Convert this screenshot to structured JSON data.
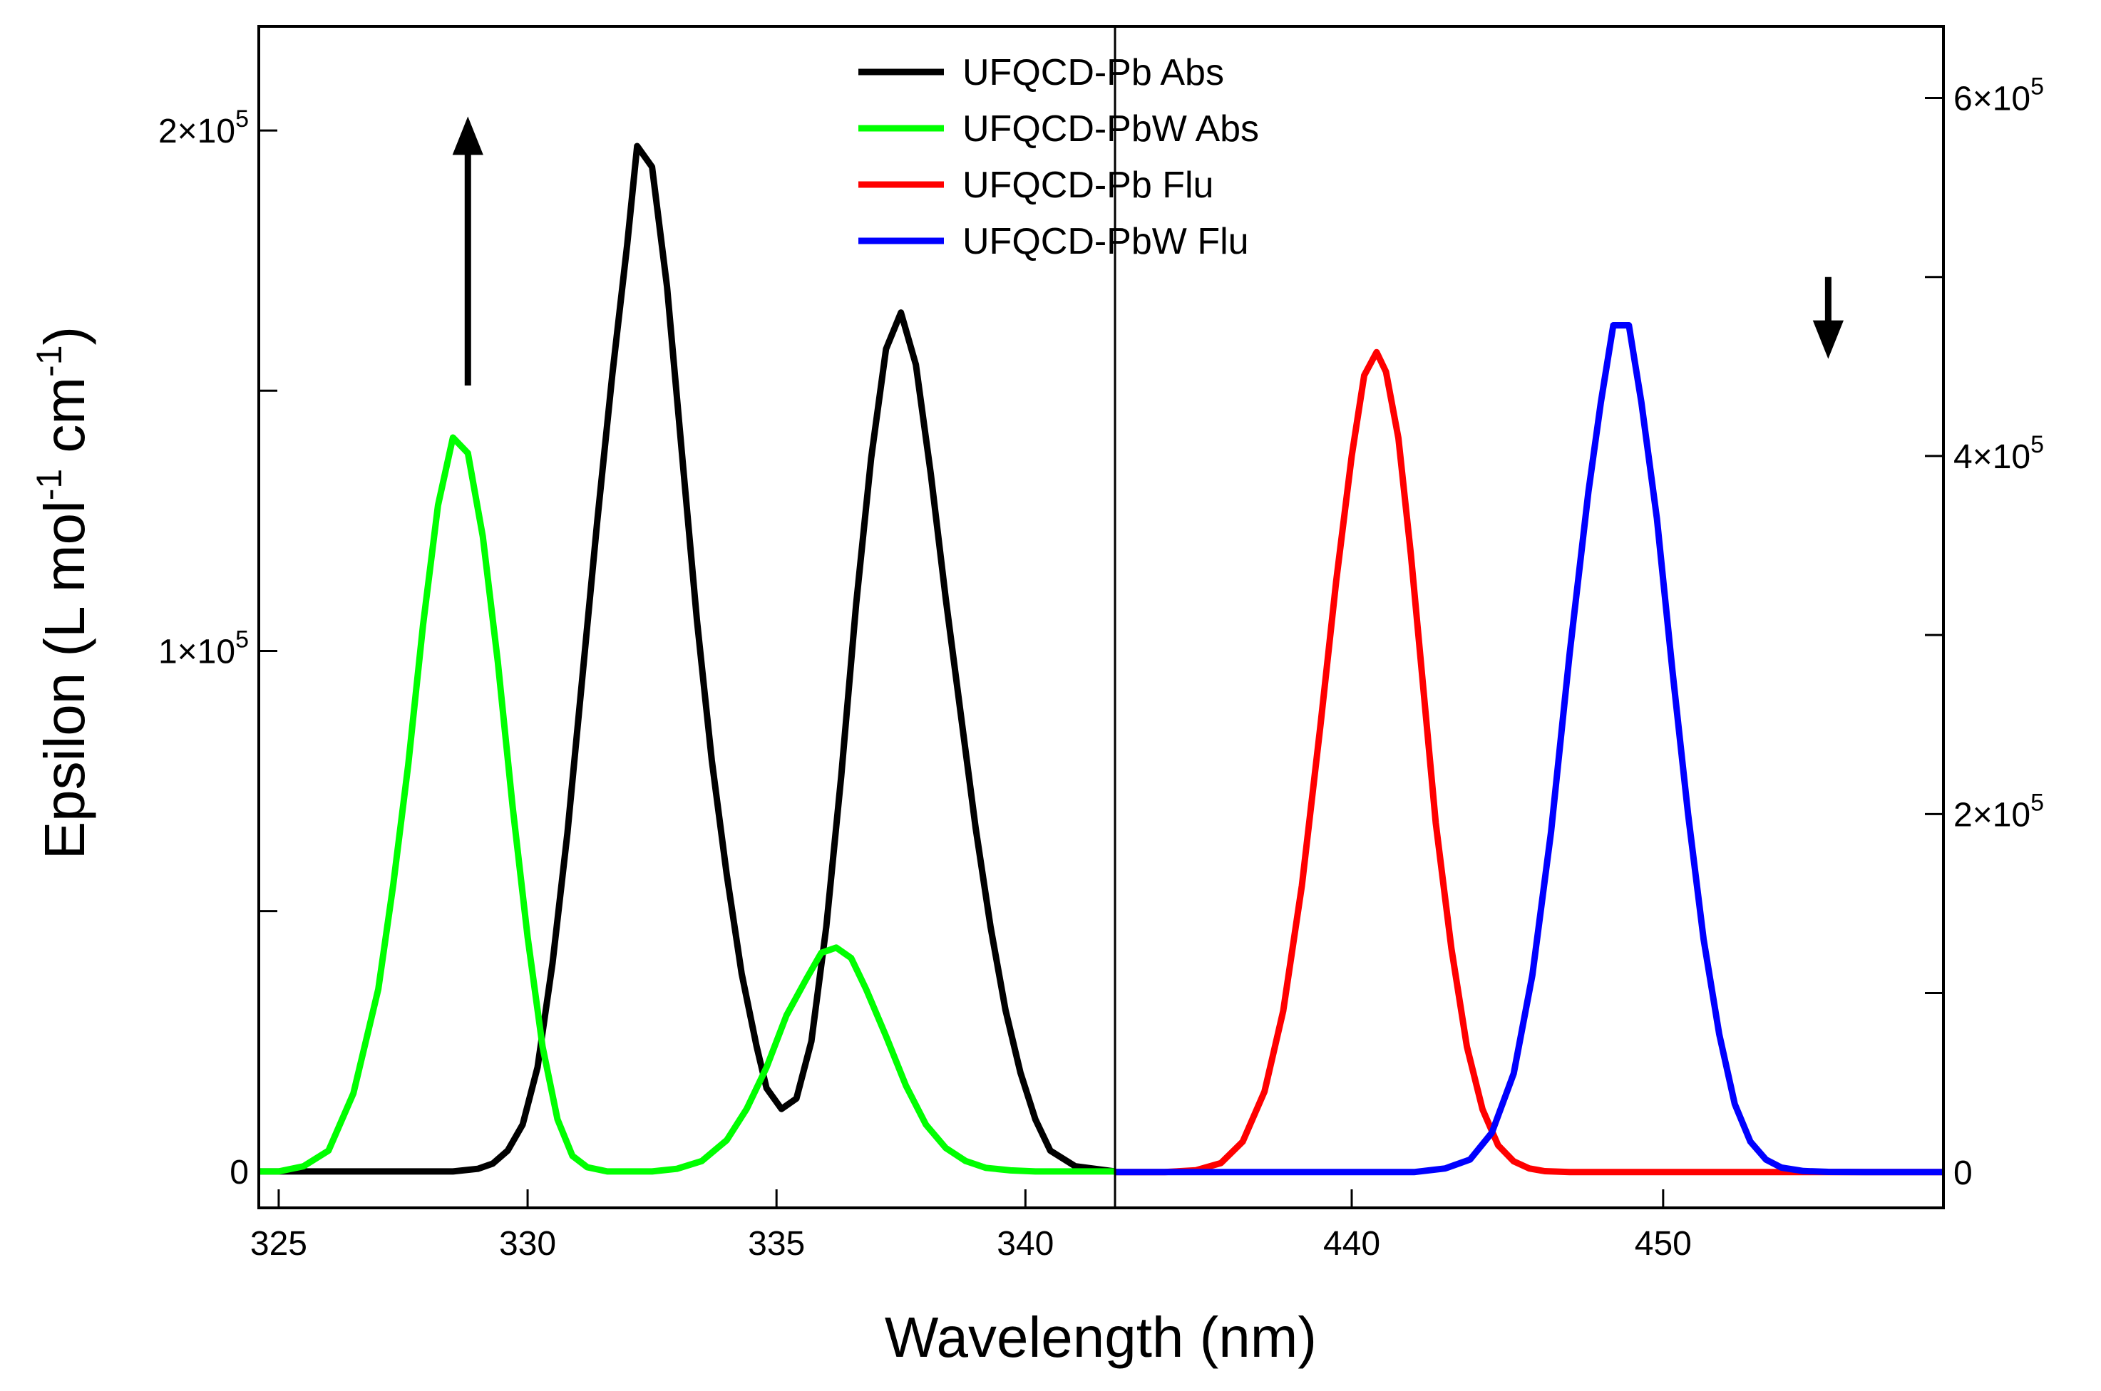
{
  "chart_data": {
    "type": "line",
    "xlabel": "Wavelength (nm)",
    "ylabel_parts": [
      "Epsilon (L mol",
      "-1",
      " cm",
      "-1",
      ")"
    ],
    "left_panel": {
      "xlim": [
        324.6,
        341.8
      ],
      "ylim": [
        -7000,
        220000
      ],
      "xticks": [
        325,
        330,
        335,
        340
      ],
      "xtick_labels": [
        "325",
        "330",
        "335",
        "340"
      ],
      "yticks": [
        0,
        50000,
        100000,
        150000,
        200000
      ],
      "ytick_labels": [
        {
          "value": 0,
          "mantissa": "0",
          "exponent": ""
        },
        {
          "value": 100000,
          "mantissa": "1×10",
          "exponent": "5"
        },
        {
          "value": 200000,
          "mantissa": "2×10",
          "exponent": "5"
        }
      ],
      "series": [
        {
          "name": "UFQCD-Pb Abs",
          "color": "#000000",
          "x": [
            324.6,
            325,
            326,
            327,
            328,
            328.5,
            329,
            329.3,
            329.6,
            329.9,
            330.2,
            330.5,
            330.8,
            331.1,
            331.4,
            331.7,
            332.0,
            332.2,
            332.5,
            332.8,
            333.1,
            333.4,
            333.7,
            334.0,
            334.3,
            334.6,
            334.8,
            335.1,
            335.4,
            335.7,
            336.0,
            336.3,
            336.6,
            336.9,
            337.2,
            337.5,
            337.8,
            338.1,
            338.4,
            338.7,
            339.0,
            339.3,
            339.6,
            339.9,
            340.2,
            340.5,
            341.0,
            341.8
          ],
          "y": [
            0,
            0,
            0,
            0,
            0,
            0,
            500,
            1500,
            4000,
            9000,
            20000,
            40000,
            65000,
            95000,
            125000,
            153000,
            178000,
            197000,
            193000,
            170000,
            138000,
            106000,
            79000,
            57000,
            38000,
            24000,
            16000,
            12000,
            14000,
            25000,
            47000,
            76000,
            109000,
            137000,
            158000,
            165000,
            155000,
            134000,
            110000,
            88000,
            66000,
            47000,
            31000,
            19000,
            10000,
            4000,
            1000,
            0
          ]
        },
        {
          "name": "UFQCD-PbW Abs",
          "color": "#00ff00",
          "x": [
            324.6,
            325,
            325.5,
            326,
            326.5,
            327,
            327.3,
            327.6,
            327.9,
            328.2,
            328.5,
            328.8,
            329.1,
            329.4,
            329.7,
            330.0,
            330.3,
            330.6,
            330.9,
            331.2,
            331.6,
            332.0,
            332.5,
            333.0,
            333.5,
            334.0,
            334.4,
            334.8,
            335.2,
            335.6,
            335.9,
            336.2,
            336.5,
            336.8,
            337.2,
            337.6,
            338.0,
            338.4,
            338.8,
            339.2,
            339.7,
            340.2,
            341.0,
            341.8
          ],
          "y": [
            0,
            0,
            1000,
            4000,
            15000,
            35000,
            55000,
            78000,
            105000,
            128000,
            141000,
            138000,
            122000,
            98000,
            70000,
            45000,
            24000,
            10000,
            3000,
            800,
            0,
            0,
            0,
            500,
            2000,
            6000,
            12000,
            20000,
            30000,
            37000,
            42000,
            43000,
            41000,
            35000,
            26000,
            16500,
            9000,
            4500,
            2000,
            700,
            200,
            0,
            0,
            0
          ]
        }
      ]
    },
    "right_panel": {
      "xlim": [
        432.4,
        459.0
      ],
      "ylim": [
        -20000,
        640000
      ],
      "xticks": [
        440,
        450
      ],
      "xtick_labels": [
        "440",
        "450"
      ],
      "yticks": [
        0,
        100000,
        200000,
        300000,
        400000,
        500000,
        600000
      ],
      "ytick_labels": [
        {
          "value": 0,
          "mantissa": "0",
          "exponent": ""
        },
        {
          "value": 200000,
          "mantissa": "2×10",
          "exponent": "5"
        },
        {
          "value": 400000,
          "mantissa": "4×10",
          "exponent": "5"
        },
        {
          "value": 600000,
          "mantissa": "6×10",
          "exponent": "5"
        }
      ],
      "series": [
        {
          "name": "UFQCD-Pb Flu",
          "color": "#ff0000",
          "x": [
            432.4,
            434,
            435,
            435.8,
            436.5,
            437.2,
            437.8,
            438.4,
            439.0,
            439.5,
            440.0,
            440.4,
            440.8,
            441.1,
            441.5,
            441.9,
            442.3,
            442.7,
            443.2,
            443.7,
            444.2,
            444.7,
            445.2,
            445.7,
            446.2,
            447,
            448,
            459.0
          ],
          "y": [
            0,
            0,
            1000,
            5000,
            17000,
            45000,
            90000,
            160000,
            250000,
            330000,
            400000,
            445000,
            458000,
            447000,
            410000,
            345000,
            270000,
            195000,
            125000,
            70000,
            35000,
            15000,
            6000,
            2000,
            500,
            0,
            0,
            0
          ]
        },
        {
          "name": "UFQCD-PbW Flu",
          "color": "#0000ff",
          "x": [
            432.4,
            442,
            443,
            443.8,
            444.5,
            445.2,
            445.8,
            446.4,
            447.0,
            447.6,
            448.0,
            448.4,
            448.9,
            449.3,
            449.8,
            450.3,
            450.8,
            451.3,
            451.8,
            452.3,
            452.8,
            453.3,
            453.8,
            454.5,
            455.3,
            456.5,
            459.0
          ],
          "y": [
            0,
            0,
            2000,
            7000,
            22000,
            55000,
            110000,
            190000,
            290000,
            380000,
            430000,
            473000,
            473000,
            430000,
            365000,
            280000,
            200000,
            130000,
            77000,
            38000,
            17000,
            7000,
            2500,
            600,
            100,
            0,
            0
          ]
        }
      ]
    },
    "legend": {
      "placement": "top-center",
      "items": [
        {
          "label": "UFQCD-Pb Abs",
          "color": "#000000"
        },
        {
          "label": "UFQCD-PbW Abs",
          "color": "#00ff00"
        },
        {
          "label": "UFQCD-Pb Flu",
          "color": "#ff0000"
        },
        {
          "label": "UFQCD-PbW Flu",
          "color": "#0000ff"
        }
      ]
    },
    "annotations": [
      {
        "type": "arrow",
        "direction": "up",
        "panel": "left",
        "x": 328.8,
        "y_from": 151000,
        "y_to": 199000
      },
      {
        "type": "arrow",
        "direction": "down",
        "panel": "right",
        "x": 455.3,
        "y_from": 500000,
        "y_to": 465000
      }
    ]
  }
}
